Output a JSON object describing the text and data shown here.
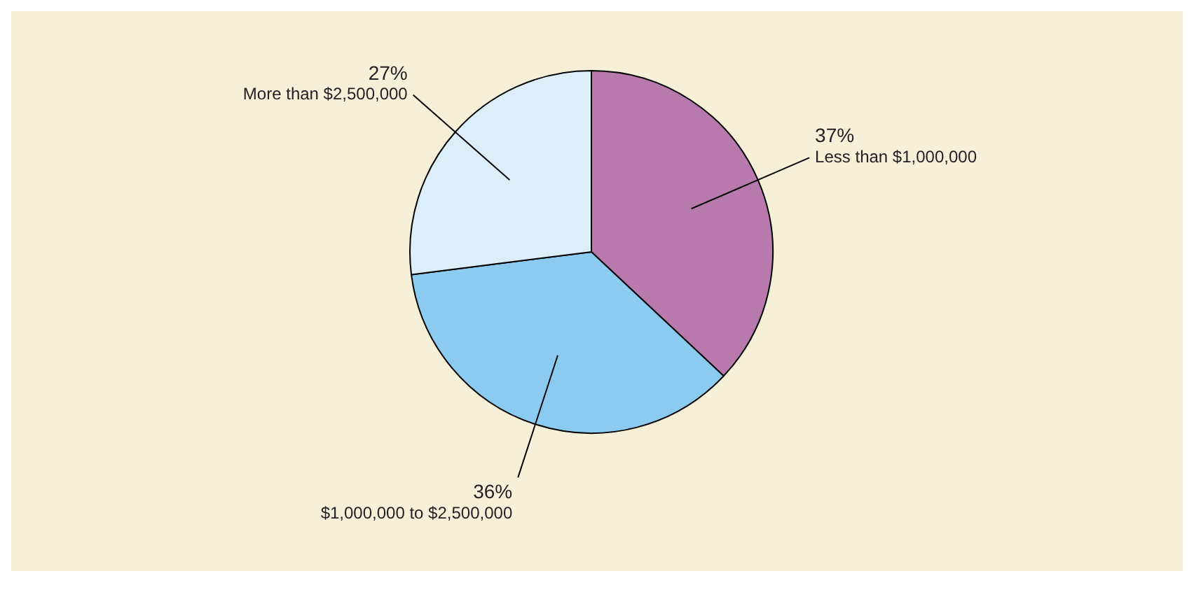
{
  "chart_data": {
    "type": "pie",
    "categories": [
      "Less than $1,000,000",
      "$1,000,000 to $2,500,000",
      "More than $2,500,000"
    ],
    "values": [
      37,
      36,
      27
    ],
    "colors": [
      "#b87aad",
      "#8ccbf0",
      "#dceefa"
    ],
    "value_labels": [
      "37%",
      "36%",
      "27%"
    ],
    "legend": false
  }
}
